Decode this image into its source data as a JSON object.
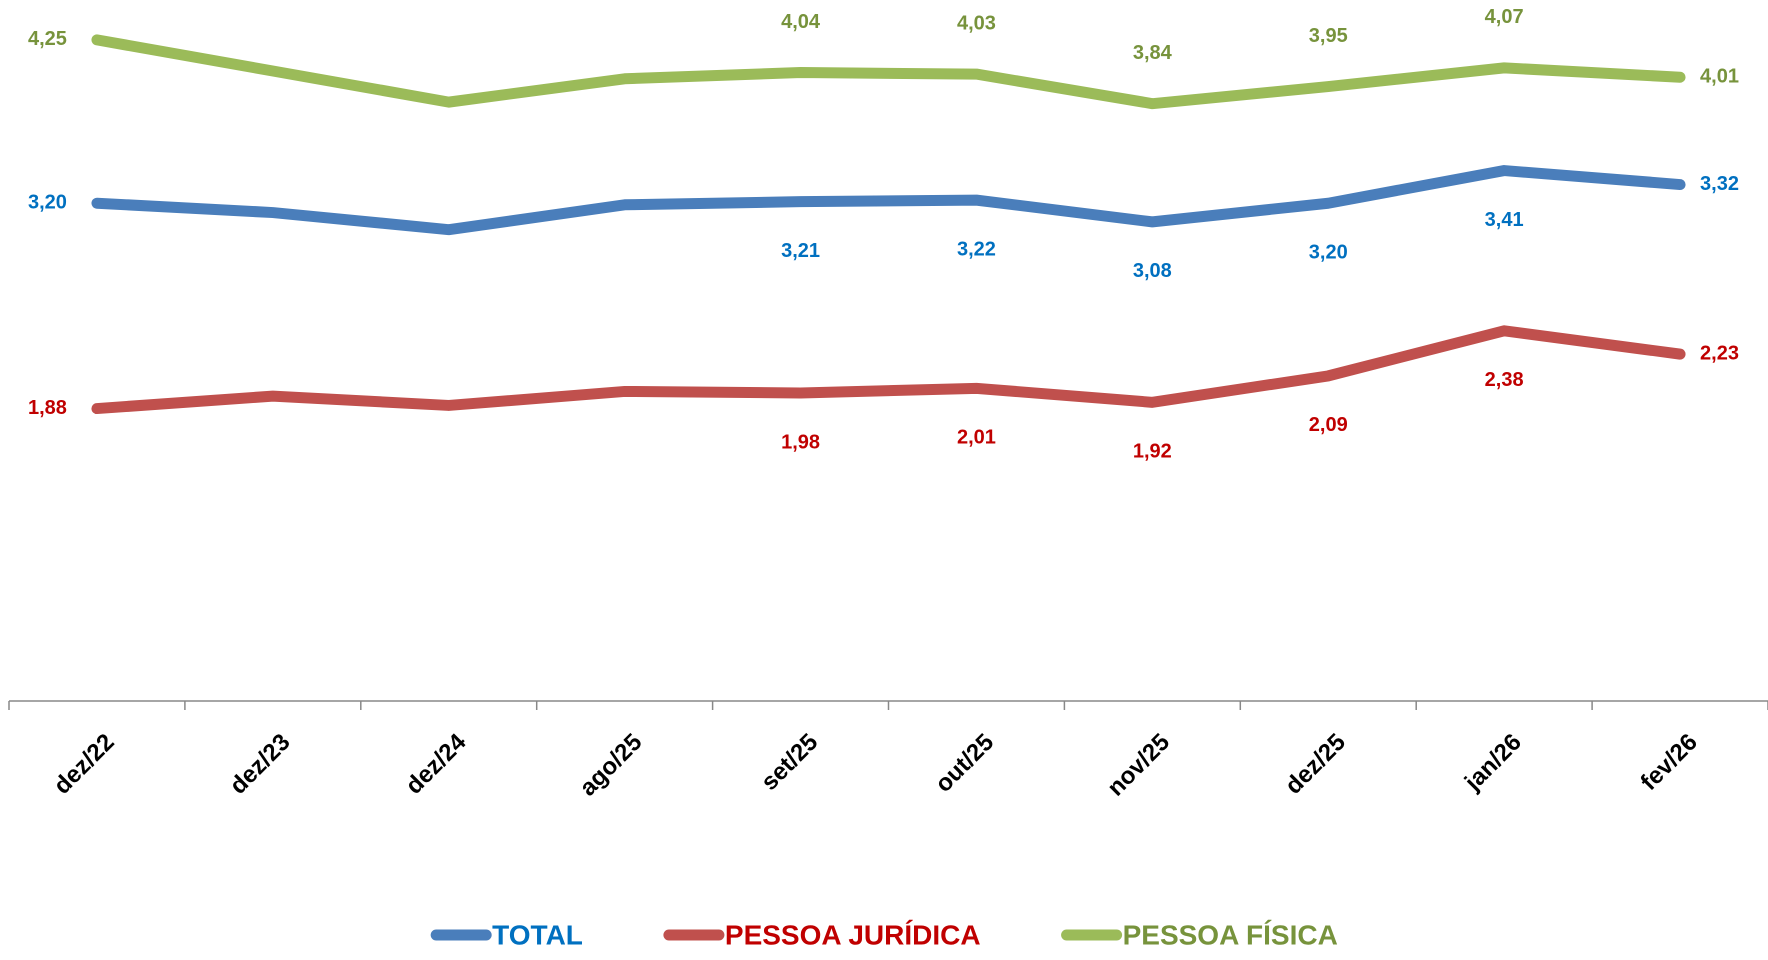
{
  "chart_data": {
    "type": "line",
    "categories": [
      "dez/22",
      "dez/23",
      "dez/24",
      "ago/25",
      "set/25",
      "out/25",
      "nov/25",
      "dez/25",
      "jan/26",
      "fev/26"
    ],
    "series": [
      {
        "name": "TOTAL",
        "color": "#4a7ebb",
        "label_color": "#0070c0",
        "values": [
          3.2,
          3.14,
          3.03,
          3.19,
          3.21,
          3.22,
          3.08,
          3.2,
          3.41,
          3.32
        ],
        "value_labels": [
          "3,20",
          null,
          null,
          null,
          "3,21",
          "3,22",
          "3,08",
          "3,20",
          "3,41",
          "3,32"
        ]
      },
      {
        "name": "PESSOA JURÍDICA",
        "color": "#c0504d",
        "label_color": "#c00000",
        "values": [
          1.88,
          1.96,
          1.9,
          1.99,
          1.98,
          2.01,
          1.92,
          2.09,
          2.38,
          2.23
        ],
        "value_labels": [
          "1,88",
          null,
          null,
          null,
          "1,98",
          "2,01",
          "1,92",
          "2,09",
          "2,38",
          "2,23"
        ]
      },
      {
        "name": "PESSOA FÍSICA",
        "color": "#9bbb59",
        "label_color": "#77933c",
        "values": [
          4.25,
          4.05,
          3.85,
          4.0,
          4.04,
          4.03,
          3.84,
          3.95,
          4.07,
          4.01
        ],
        "value_labels": [
          "4,25",
          null,
          null,
          null,
          "4,04",
          "4,03",
          "3,84",
          "3,95",
          "4,07",
          "4,01"
        ]
      }
    ],
    "ylim": [
      0,
      4.5
    ],
    "legend": "bottom"
  }
}
